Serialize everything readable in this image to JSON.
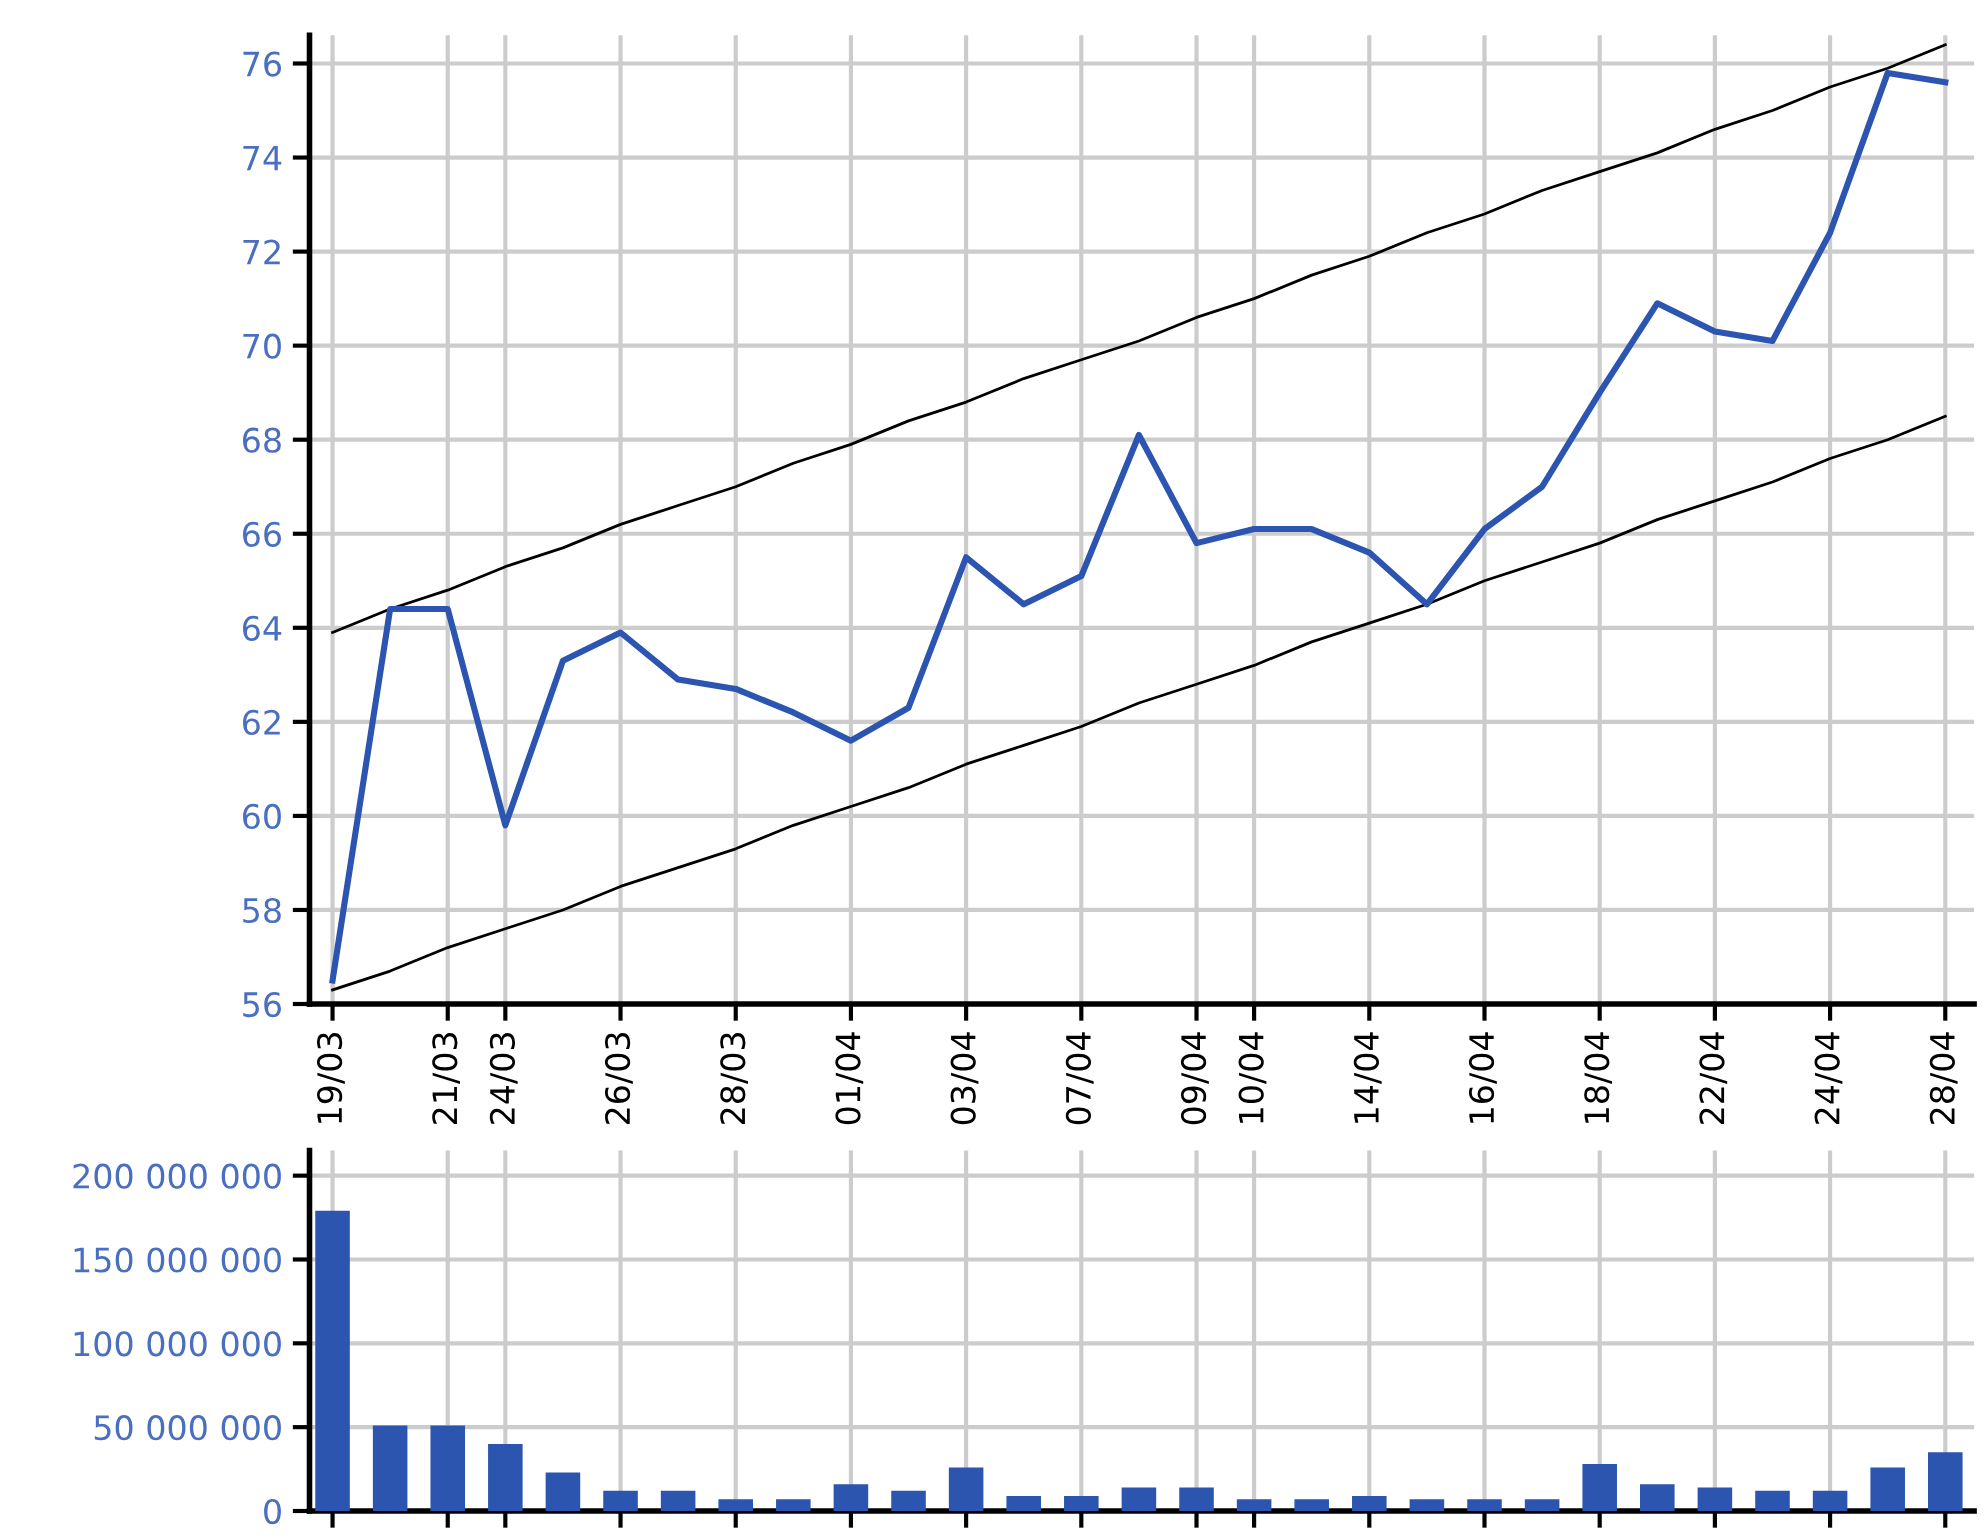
{
  "chart_data": [
    {
      "type": "line",
      "categories": [
        "19/03",
        null,
        "21/03",
        "24/03",
        null,
        "26/03",
        null,
        "28/03",
        null,
        "01/04",
        null,
        "03/04",
        null,
        "07/04",
        null,
        "09/04",
        "10/04",
        null,
        "14/04",
        null,
        "16/04",
        null,
        "18/04",
        null,
        "22/04",
        null,
        "24/04",
        null,
        "28/04"
      ],
      "series": [
        {
          "color": "#2b55b0",
          "values": [
            56.5,
            64.4,
            64.4,
            59.8,
            63.3,
            63.9,
            62.9,
            62.7,
            62.2,
            61.6,
            62.3,
            65.5,
            64.5,
            65.1,
            68.1,
            65.8,
            66.1,
            66.1,
            65.6,
            64.5,
            66.1,
            67.0,
            69.0,
            70.9,
            70.3,
            70.1,
            72.4,
            75.8,
            75.6
          ]
        },
        {
          "type": "line",
          "color": "#000000",
          "values": [
            63.9,
            64.4,
            64.8,
            65.3,
            65.7,
            66.2,
            66.6,
            67.0,
            67.5,
            67.9,
            68.4,
            68.8,
            69.3,
            69.7,
            70.1,
            70.6,
            71.0,
            71.5,
            71.9,
            72.4,
            72.8,
            73.3,
            73.7,
            74.1,
            74.6,
            75.0,
            75.5,
            75.9,
            76.4
          ]
        },
        {
          "type": "line",
          "color": "#000000",
          "values": [
            56.3,
            56.7,
            57.2,
            57.6,
            58.0,
            58.5,
            58.9,
            59.3,
            59.8,
            60.2,
            60.6,
            61.1,
            61.5,
            61.9,
            62.4,
            62.8,
            63.2,
            63.7,
            64.1,
            64.5,
            65.0,
            65.4,
            65.8,
            66.3,
            66.7,
            67.1,
            67.6,
            68.0,
            68.5
          ]
        }
      ],
      "ylim": [
        56,
        76.6
      ],
      "yticks": [
        56,
        58,
        60,
        62,
        64,
        66,
        68,
        70,
        72,
        74,
        76
      ],
      "grid": true,
      "marker": "none",
      "line_style": "solid"
    },
    {
      "type": "bar",
      "categories": [
        null,
        null,
        null,
        null,
        null,
        null,
        null,
        null,
        null,
        null,
        null,
        null,
        null,
        null,
        null,
        null,
        null,
        null,
        null,
        null,
        null,
        null,
        null,
        null,
        null,
        null,
        null,
        null,
        null
      ],
      "series": [
        {
          "color": "#2b55ae",
          "values": [
            179000000,
            51000000,
            51000000,
            40000000,
            23000000,
            12000000,
            12000000,
            7000000,
            7000000,
            16000000,
            12000000,
            26000000,
            9000000,
            9000000,
            14000000,
            14000000,
            7000000,
            7000000,
            9000000,
            7000000,
            7000000,
            7000000,
            28000000,
            16000000,
            14000000,
            12000000,
            12000000,
            26000000,
            35000000
          ]
        }
      ],
      "ylim": [
        0,
        215000000
      ],
      "yticks": [
        0,
        {
          "value": 50000000,
          "label": "50 000 000"
        },
        {
          "value": 100000000,
          "label": "100 000 000"
        },
        {
          "value": 150000000,
          "label": "150 000 000"
        },
        {
          "value": 200000000,
          "label": "200 000 000"
        }
      ],
      "grid": true,
      "tick_labels": "y"
    }
  ]
}
